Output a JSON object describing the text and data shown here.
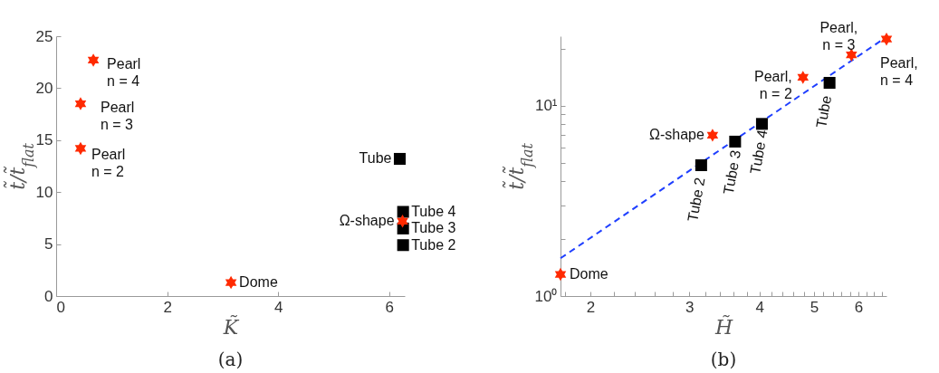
{
  "chart_data": [
    {
      "type": "scatter",
      "title": "(a)",
      "xlabel": "K̃",
      "ylabel": "t̃/t̃$_{flat}$",
      "xlim": [
        0,
        6.28
      ],
      "xticks": [
        0,
        2,
        4,
        6
      ],
      "ylim": [
        0,
        25
      ],
      "yticks": [
        0,
        5,
        10,
        15,
        20,
        25
      ],
      "grid": false,
      "series": [
        {
          "color": "#000000",
          "marker": "square",
          "x": [
            6.19,
            6.25,
            6.25,
            6.25
          ],
          "values": [
            13.2,
            8.1,
            6.5,
            4.9
          ]
        },
        {
          "color": "#ff2a00",
          "marker": "star",
          "x": [
            0.67,
            0.44,
            0.44,
            3.15,
            6.24
          ],
          "values": [
            22.7,
            18.5,
            14.2,
            1.3,
            7.2
          ]
        }
      ],
      "annotations": [
        {
          "text": "Pearl\nn = 4",
          "x": 0.67,
          "y": 22.7
        },
        {
          "text": "Pearl\nn = 3",
          "x": 0.44,
          "y": 18.5
        },
        {
          "text": "Pearl\nn = 2",
          "x": 0.44,
          "y": 14.2
        },
        {
          "text": "Dome",
          "x": 3.15,
          "y": 1.3
        },
        {
          "text": "Ω-shape",
          "x": 6.24,
          "y": 7.2
        },
        {
          "text": "Tube",
          "x": 6.19,
          "y": 13.2
        },
        {
          "text": "Tube 4",
          "x": 6.25,
          "y": 8.1
        },
        {
          "text": "Tube 3",
          "x": 6.25,
          "y": 6.5
        },
        {
          "text": "Tube 2",
          "x": 6.25,
          "y": 4.9
        }
      ]
    },
    {
      "type": "scatter",
      "title": "(b)",
      "xlabel": "H̃",
      "ylabel": "t̃/t̃$_{flat}$",
      "log": "xy",
      "xlim": [
        1.77,
        6.73
      ],
      "xticks": [
        {
          "value": 1.8,
          "label": null
        },
        2,
        {
          "value": 2.2,
          "label": null
        },
        {
          "value": 2.4,
          "label": null
        },
        {
          "value": 2.6,
          "label": null
        },
        {
          "value": 2.8,
          "label": null
        },
        3,
        {
          "value": 3.2,
          "label": null
        },
        {
          "value": 3.4,
          "label": null
        },
        {
          "value": 3.6,
          "label": null
        },
        {
          "value": 3.8,
          "label": null
        },
        4,
        {
          "value": 4.2,
          "label": null
        },
        {
          "value": 4.4,
          "label": null
        },
        {
          "value": 4.6,
          "label": null
        },
        {
          "value": 4.8,
          "label": null
        },
        5,
        {
          "value": 5.2,
          "label": null
        },
        {
          "value": 5.4,
          "label": null
        },
        {
          "value": 5.6,
          "label": null
        },
        {
          "value": 5.8,
          "label": null
        },
        6,
        {
          "value": 6.2,
          "label": null
        },
        {
          "value": 6.4,
          "label": null
        },
        {
          "value": 6.6,
          "label": null
        }
      ],
      "ylim": [
        1,
        23.2
      ],
      "yticks": [
        {
          "value": 1,
          "label": "10⁰"
        },
        {
          "value": 2,
          "label": null
        },
        {
          "value": 3,
          "label": null
        },
        {
          "value": 4,
          "label": null
        },
        {
          "value": 5,
          "label": null
        },
        {
          "value": 6,
          "label": null
        },
        {
          "value": 7,
          "label": null
        },
        {
          "value": 8,
          "label": null
        },
        {
          "value": 9,
          "label": null
        },
        {
          "value": 10,
          "label": "10¹"
        },
        {
          "value": 20,
          "label": null
        }
      ],
      "grid": false,
      "series": [
        {
          "type": "line",
          "color": "#1f3fff",
          "line_style": "dashed",
          "marker": "none",
          "x": [
            1.77,
            6.73
          ],
          "values": [
            1.58,
            23.0
          ]
        },
        {
          "color": "#ff2a00",
          "marker": "star",
          "x": [
            1.77,
            3.3,
            4.78,
            5.83,
            6.73
          ],
          "values": [
            1.3,
            7.0,
            14.1,
            18.5,
            22.4
          ]
        },
        {
          "color": "#000000",
          "marker": "square",
          "x": [
            3.15,
            3.62,
            4.04,
            5.33
          ],
          "values": [
            4.87,
            6.48,
            8.03,
            13.2
          ]
        }
      ],
      "annotations": [
        {
          "text": "Dome",
          "x": 1.77,
          "y": 1.3
        },
        {
          "text": "Ω-shape",
          "x": 3.3,
          "y": 7.0
        },
        {
          "text": "Pearl,\nn = 2",
          "x": 4.78,
          "y": 14.1
        },
        {
          "text": "Pearl,\nn = 3",
          "x": 5.83,
          "y": 18.5
        },
        {
          "text": "Pearl,\nn = 4",
          "x": 6.73,
          "y": 22.4
        },
        {
          "text": "Tube 2",
          "x": 3.15,
          "y": 4.87
        },
        {
          "text": "Tube 3",
          "x": 3.62,
          "y": 6.48
        },
        {
          "text": "Tube 4",
          "x": 4.04,
          "y": 8.03
        },
        {
          "text": "Tube",
          "x": 5.33,
          "y": 13.2
        }
      ]
    }
  ]
}
